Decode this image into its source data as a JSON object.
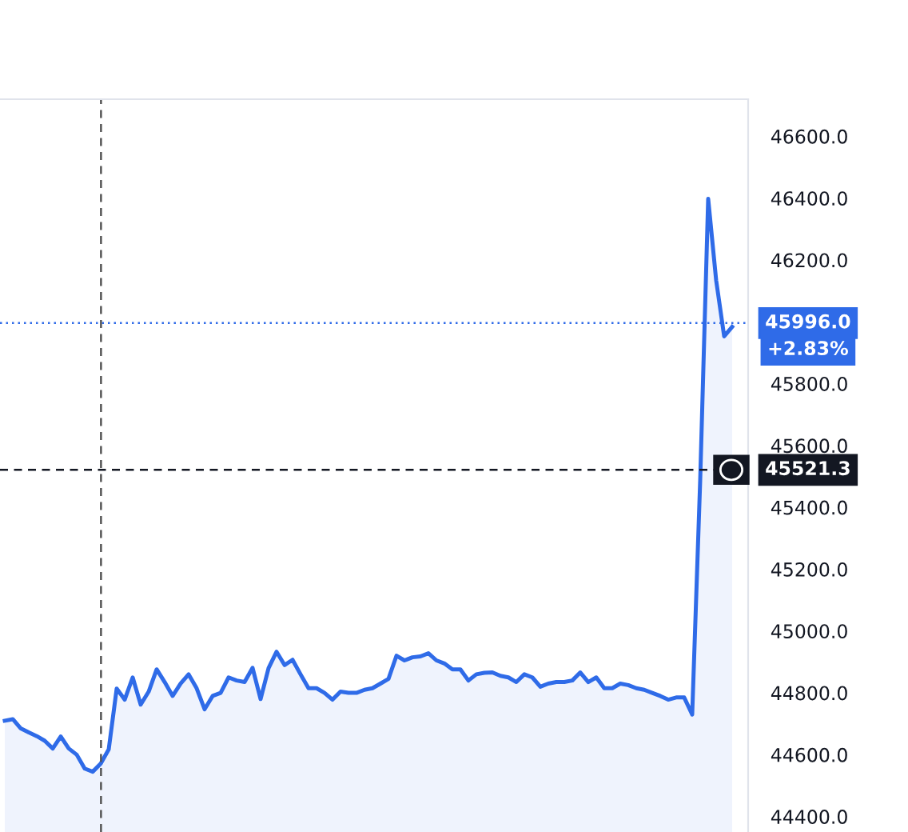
{
  "chart_data": {
    "type": "area",
    "categories": [
      null,
      null,
      null,
      null,
      null,
      null,
      null,
      null,
      null,
      null,
      null,
      null,
      null,
      null,
      null,
      null,
      null,
      null,
      null,
      null,
      null,
      null,
      null,
      null,
      null,
      null,
      null,
      null,
      null,
      null,
      null,
      null,
      null,
      null,
      null,
      null,
      null,
      null,
      null,
      null,
      null,
      null,
      null,
      null,
      null,
      null,
      null,
      null,
      null,
      null,
      null,
      null,
      null,
      null,
      null,
      null,
      null,
      null,
      null,
      null,
      null,
      null,
      null,
      null,
      null,
      null,
      null,
      null,
      null,
      null,
      null,
      null,
      null,
      null,
      null,
      null,
      null,
      null,
      null,
      null,
      null,
      null,
      null,
      null,
      null,
      null,
      null,
      null,
      null,
      null,
      null,
      null
    ],
    "series": [
      {
        "color": "#2f6be8",
        "values": [
          44710,
          44715,
          44685,
          44672,
          44660,
          44645,
          44620,
          44659,
          44620,
          44600,
          44555,
          44545,
          44571,
          44617,
          44814,
          44778,
          44850,
          44762,
          44804,
          44876,
          44835,
          44790,
          44830,
          44860,
          44815,
          44747,
          44790,
          44800,
          44850,
          44840,
          44835,
          44881,
          44780,
          44880,
          44933,
          44890,
          44907,
          44860,
          44815,
          44815,
          44800,
          44778,
          44804,
          44800,
          44800,
          44810,
          44815,
          44830,
          44845,
          44920,
          44905,
          44915,
          44918,
          44928,
          44905,
          44895,
          44876,
          44876,
          44840,
          44860,
          44865,
          44866,
          44855,
          44850,
          44835,
          44860,
          44850,
          44820,
          44830,
          44835,
          44835,
          44840,
          44866,
          44835,
          44850,
          44815,
          44815,
          44830,
          44825,
          44815,
          44810,
          44800,
          44790,
          44778,
          44785,
          44785,
          44730,
          45487,
          46398,
          46134,
          45953,
          45984
        ]
      }
    ],
    "ylim": [
      44350,
      46720
    ],
    "yticks": [
      {
        "value": 44400,
        "label": "44400.0"
      },
      {
        "value": 44600,
        "label": "44600.0"
      },
      {
        "value": 44800,
        "label": "44800.0"
      },
      {
        "value": 45000,
        "label": "45000.0"
      },
      {
        "value": 45200,
        "label": "45200.0"
      },
      {
        "value": 45400,
        "label": "45400.0"
      },
      {
        "value": 45600,
        "label": "45600.0"
      },
      {
        "value": 45800,
        "label": "45800.0"
      },
      {
        "value": 46200,
        "label": "46200.0"
      },
      {
        "value": 46400,
        "label": "46400.0"
      },
      {
        "value": 46600,
        "label": "46600.0"
      }
    ],
    "tick_labels": "y",
    "grid": false,
    "ref_lines": [
      {
        "axis": "y",
        "value": 45996.0,
        "label": "45996.0",
        "color": "#2f6be8",
        "line_style": "dotted"
      },
      {
        "axis": "y",
        "value": 45521.3,
        "label": "45521.3",
        "color": "#131722",
        "line_style": "dashed"
      }
    ],
    "annotations": [
      "+2.83%"
    ]
  }
}
